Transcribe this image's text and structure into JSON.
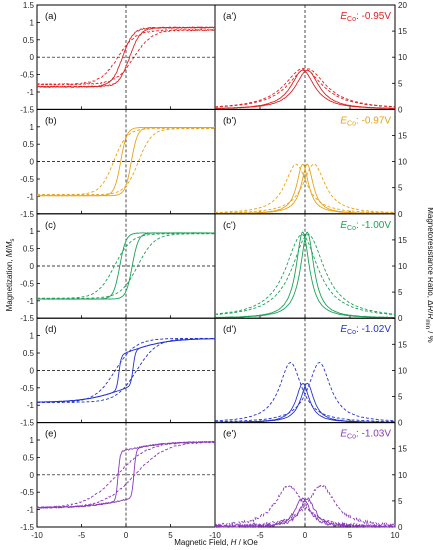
{
  "figure": {
    "x_axis_label": "Magnetic Field, H / kOe",
    "left_axis_label": "Magnetization, M/Ms",
    "right_axis_label": "Magnetoresistance Ratio, ΔR/Rmin / %",
    "left_ticks": [
      "1.5",
      "1",
      "0.5",
      "0",
      "-0.5",
      "-1",
      "-1.5"
    ],
    "right_ticks": [
      "20",
      "15",
      "10",
      "5",
      "0"
    ],
    "x_ticks_left": [
      "-10",
      "-5",
      "0",
      "5",
      ""
    ],
    "x_ticks_right": [
      "-10",
      "-5",
      "0",
      "5",
      "10"
    ],
    "colors": [
      "#dd2222",
      "#e8a317",
      "#1aa256",
      "#2233cc",
      "#8a3ab8"
    ]
  },
  "chart_data": [
    {
      "type": "line",
      "panel": "(a)",
      "condition": "E_Co: -0.95V",
      "xlabel": "Magnetic Field, H / kOe",
      "ylabel": "Magnetization, M/Ms",
      "xlim": [
        -10,
        10
      ],
      "ylim": [
        -1.5,
        1.5
      ],
      "params": {
        "hc_solid": 0.4,
        "w_solid": 1.2,
        "hc_dash": 0.9,
        "w_dash": 2.0,
        "ms_solid": 0.85,
        "ms_dash": 0.78,
        "mr_ratio": 0.0
      },
      "series": [
        {
          "style": "solid",
          "x": [
            -10,
            -5,
            -2,
            -1,
            0,
            0.5,
            1,
            2,
            5,
            10
          ],
          "y": [
            -0.85,
            -0.82,
            -0.72,
            -0.55,
            -0.2,
            0.2,
            0.55,
            0.72,
            0.82,
            0.85
          ]
        },
        {
          "style": "dashed",
          "x": [
            -10,
            -5,
            -2,
            -1,
            0,
            1,
            2,
            5,
            10
          ],
          "y": [
            -0.78,
            -0.72,
            -0.55,
            -0.35,
            -0.1,
            0.35,
            0.55,
            0.72,
            0.78
          ]
        }
      ]
    },
    {
      "type": "line",
      "panel": "(a')",
      "condition": "E_Co: -0.95V",
      "xlabel": "Magnetic Field, H / kOe",
      "ylabel": "Magnetoresistance Ratio, ΔR/Rmin / %",
      "xlim": [
        -10,
        10
      ],
      "ylim": [
        0,
        20
      ],
      "params": {
        "peak_solid": 7.5,
        "w_solid": 1.6,
        "peak_dash": 7.8,
        "w_dash": 2.6,
        "offset": 0.2
      },
      "series": [
        {
          "style": "solid",
          "x": [
            -10,
            -5,
            -2,
            -1,
            0,
            1,
            2,
            5,
            10
          ],
          "y": [
            0,
            0.3,
            2.5,
            4.8,
            7.5,
            4.8,
            2.5,
            0.3,
            0
          ]
        },
        {
          "style": "dashed",
          "x": [
            -10,
            -5,
            -2,
            -1,
            0,
            1,
            2,
            5,
            10
          ],
          "y": [
            0,
            0.8,
            3.6,
            5.8,
            7.8,
            5.8,
            3.6,
            0.8,
            0
          ]
        }
      ]
    },
    {
      "type": "line",
      "panel": "(b)",
      "condition": "E_Co: -0.97V",
      "xlabel": "Magnetic Field, H / kOe",
      "ylabel": "Magnetization, M/Ms",
      "xlim": [
        -10,
        10
      ],
      "ylim": [
        -1.5,
        1.5
      ],
      "params": {
        "hc_solid": 0.6,
        "w_solid": 0.7,
        "hc_dash": 1.4,
        "w_dash": 1.5,
        "ms_solid": 0.98,
        "ms_dash": 0.95,
        "mr_ratio": 0.0
      },
      "series": [
        {
          "style": "solid",
          "x": [
            -10,
            -5,
            -2,
            -1,
            0,
            0.5,
            1,
            2,
            5,
            10
          ],
          "y": [
            -0.98,
            -0.98,
            -0.9,
            -0.8,
            -0.5,
            0.1,
            0.7,
            0.92,
            0.98,
            0.98
          ]
        },
        {
          "style": "dashed",
          "x": [
            -10,
            -5,
            -3,
            -2,
            -1,
            0,
            1,
            2,
            3,
            5,
            10
          ],
          "y": [
            -0.95,
            -0.9,
            -0.8,
            -0.7,
            -0.55,
            -0.3,
            0.3,
            0.7,
            0.85,
            0.93,
            0.95
          ]
        }
      ]
    },
    {
      "type": "line",
      "panel": "(b')",
      "condition": "E_Co: -0.97V",
      "xlabel": "Magnetic Field, H / kOe",
      "ylabel": "Magnetoresistance Ratio, ΔR/Rmin / %",
      "xlim": [
        -10,
        10
      ],
      "ylim": [
        0,
        20
      ],
      "params": {
        "peak_solid": 9.5,
        "w_solid": 0.8,
        "peak_dash": 9.5,
        "w_dash": 1.5,
        "offset": 1.0
      },
      "series": [
        {
          "style": "solid",
          "x": [
            -5,
            -2,
            -1,
            0,
            1,
            2,
            5
          ],
          "y": [
            0.1,
            0.8,
            3.0,
            9.5,
            3.0,
            0.8,
            0.1
          ]
        },
        {
          "style": "dashed",
          "x": [
            -10,
            -5,
            -2,
            -1,
            0,
            1,
            2,
            5,
            10
          ],
          "y": [
            0,
            0.8,
            4.5,
            8.0,
            6.0,
            9.5,
            8.0,
            0.8,
            0
          ]
        }
      ]
    },
    {
      "type": "line",
      "panel": "(c)",
      "condition": "E_Co: -1.00V",
      "xlabel": "Magnetic Field, H / kOe",
      "ylabel": "Magnetization, M/Ms",
      "xlim": [
        -10,
        10
      ],
      "ylim": [
        -1.5,
        1.5
      ],
      "params": {
        "hc_solid": 0.7,
        "w_solid": 0.7,
        "hc_dash": 1.3,
        "w_dash": 1.9,
        "ms_solid": 0.95,
        "ms_dash": 0.93,
        "mr_ratio": 0.0
      },
      "series": [
        {
          "style": "solid",
          "x": [
            -10,
            -5,
            -2,
            -1,
            0,
            0.5,
            1,
            2,
            5,
            10
          ],
          "y": [
            -0.95,
            -0.95,
            -0.88,
            -0.75,
            -0.45,
            0.1,
            0.6,
            0.88,
            0.95,
            0.95
          ]
        },
        {
          "style": "dashed",
          "x": [
            -10,
            -5,
            -3,
            -2,
            -1,
            0,
            1,
            2,
            3,
            5,
            10
          ],
          "y": [
            -0.93,
            -0.85,
            -0.7,
            -0.55,
            -0.4,
            -0.2,
            0.2,
            0.55,
            0.7,
            0.85,
            0.93
          ]
        }
      ]
    },
    {
      "type": "line",
      "panel": "(c')",
      "condition": "E_Co: -1.00V",
      "xlabel": "Magnetic Field, H / kOe",
      "ylabel": "Magnetoresistance Ratio, ΔR/Rmin / %",
      "xlim": [
        -10,
        10
      ],
      "ylim": [
        0,
        20
      ],
      "params": {
        "peak_solid": 16.5,
        "w_solid": 0.9,
        "peak_dash": 16.0,
        "w_dash": 2.2,
        "offset": 0.35
      },
      "series": [
        {
          "style": "solid",
          "x": [
            -5,
            -2,
            -1,
            0,
            1,
            2,
            5
          ],
          "y": [
            0.2,
            2.0,
            6.5,
            16.5,
            6.5,
            2.0,
            0.2
          ]
        },
        {
          "style": "dashed",
          "x": [
            -10,
            -5,
            -2,
            -1,
            0,
            1,
            2,
            5,
            10
          ],
          "y": [
            0.1,
            2.0,
            9.0,
            13.5,
            16.0,
            13.5,
            9.0,
            2.0,
            0.1
          ]
        }
      ]
    },
    {
      "type": "line",
      "panel": "(d)",
      "condition": "E_Co: -1.02V",
      "xlabel": "Magnetic Field, H / kOe",
      "ylabel": "Magnetization, M/Ms",
      "xlim": [
        -10,
        10
      ],
      "ylim": [
        -1.5,
        1.5
      ],
      "params": {
        "hc_solid": 0.8,
        "w_solid": 0.45,
        "hc_dash": 1.2,
        "w_dash": 2.3,
        "ms_solid": 0.92,
        "ms_dash": 0.92,
        "mr_ratio": 0.55
      },
      "series": [
        {
          "style": "solid",
          "x": [
            -10,
            -5,
            -2,
            -1,
            -0.5,
            0,
            0.5,
            1,
            2,
            5,
            10
          ],
          "y": [
            -0.92,
            -0.8,
            -0.7,
            -0.6,
            -0.55,
            -0.5,
            0.45,
            0.55,
            0.65,
            0.8,
            0.92
          ]
        },
        {
          "style": "dashed",
          "x": [
            -10,
            -5,
            -3,
            -2,
            -1,
            0,
            1,
            2,
            3,
            5,
            10
          ],
          "y": [
            -0.92,
            -0.8,
            -0.65,
            -0.5,
            -0.35,
            -0.15,
            0.15,
            0.5,
            0.65,
            0.8,
            0.92
          ]
        }
      ]
    },
    {
      "type": "line",
      "panel": "(d')",
      "condition": "E_Co: -1.02V",
      "xlabel": "Magnetic Field, H / kOe",
      "ylabel": "Magnetoresistance Ratio, ΔR/Rmin / %",
      "xlim": [
        -10,
        10
      ],
      "ylim": [
        0,
        20
      ],
      "params": {
        "peak_solid": 7.5,
        "w_solid": 0.9,
        "peak_dash": 11.5,
        "w_dash": 1.5,
        "offset": 1.6
      },
      "series": [
        {
          "style": "solid",
          "x": [
            -5,
            -2,
            -1,
            0,
            1,
            2,
            5
          ],
          "y": [
            0.2,
            1.5,
            4.5,
            7.5,
            4.5,
            1.5,
            0.2
          ]
        },
        {
          "style": "dashed",
          "x": [
            -10,
            -5,
            -3,
            -1.6,
            0,
            1.6,
            3,
            5,
            10
          ],
          "y": [
            0.5,
            3.0,
            7.0,
            11.5,
            7.0,
            11.5,
            7.0,
            3.0,
            0.5
          ]
        }
      ]
    },
    {
      "type": "line",
      "panel": "(e)",
      "condition": "E_Co: -1.03V",
      "xlabel": "Magnetic Field, H / kOe",
      "ylabel": "Magnetization, M/Ms",
      "xlim": [
        -10,
        10
      ],
      "ylim": [
        -1.5,
        1.5
      ],
      "params": {
        "hc_solid": 0.9,
        "w_solid": 0.4,
        "hc_dash": 1.0,
        "w_dash": 3.5,
        "ms_solid": 0.95,
        "ms_dash": 0.95,
        "mr_ratio": 0.75
      },
      "series": [
        {
          "style": "solid",
          "x": [
            -10,
            -5,
            -2,
            -1,
            -0.5,
            0,
            0.5,
            1,
            2,
            5,
            10
          ],
          "y": [
            -0.95,
            -0.85,
            -0.8,
            -0.75,
            -0.72,
            -0.7,
            0.7,
            0.75,
            0.8,
            0.85,
            0.95
          ]
        },
        {
          "style": "dashed",
          "x": [
            -10,
            -5,
            -3,
            -2,
            -1,
            0,
            1,
            2,
            3,
            5,
            10
          ],
          "y": [
            -0.95,
            -0.6,
            -0.45,
            -0.35,
            -0.2,
            -0.05,
            0.05,
            0.35,
            0.45,
            0.6,
            0.95
          ]
        }
      ]
    },
    {
      "type": "line",
      "panel": "(e')",
      "condition": "E_Co: -1.03V",
      "xlabel": "Magnetic Field, H / kOe",
      "ylabel": "Magnetoresistance Ratio, ΔR/Rmin / %",
      "xlim": [
        -10,
        10
      ],
      "ylim": [
        0,
        20
      ],
      "params": {
        "peak_solid": 5.5,
        "w_solid": 1.0,
        "peak_dash": 8.0,
        "w_dash": 1.8,
        "offset": 1.8
      },
      "series": [
        {
          "style": "solid",
          "x": [
            -5,
            -2,
            -1,
            0,
            1,
            2,
            5
          ],
          "y": [
            0.5,
            1.5,
            3.5,
            5.5,
            3.5,
            1.5,
            0.5
          ]
        },
        {
          "style": "dashed",
          "x": [
            -10,
            -5,
            -3,
            -1.8,
            0,
            1.8,
            3,
            5,
            10
          ],
          "y": [
            1.0,
            3.0,
            5.5,
            8.0,
            5.0,
            8.0,
            5.5,
            3.0,
            1.0
          ]
        }
      ]
    }
  ]
}
